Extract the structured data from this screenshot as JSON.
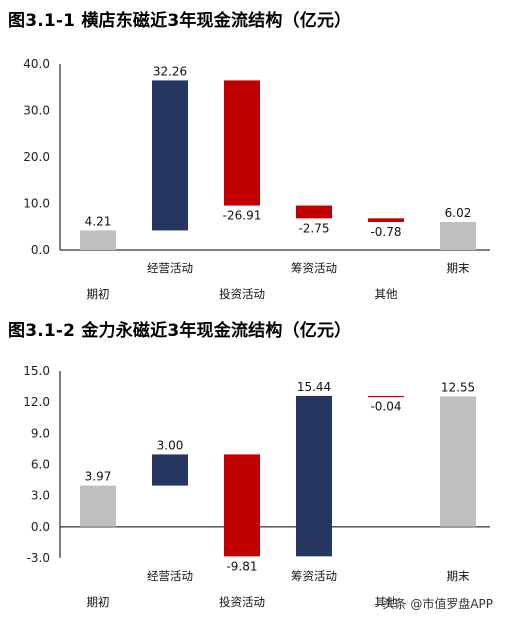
{
  "chart_data": [
    {
      "type": "bar",
      "title": "图3.1-1 横店东磁近3年现金流结构（亿元）",
      "categories": [
        "期初",
        "经营活动",
        "投资活动",
        "筹资活动",
        "其他",
        "期末"
      ],
      "values": [
        4.21,
        32.26,
        -26.91,
        -2.75,
        -0.78,
        6.02
      ],
      "value_labels": [
        "4.21",
        "32.26",
        "-26.91",
        "-2.75",
        "-0.78",
        "6.02"
      ],
      "bars": [
        {
          "category": "期初",
          "start": 0,
          "end": 4.21,
          "color": "#bfbfbf"
        },
        {
          "category": "经营活动",
          "start": 4.21,
          "end": 36.47,
          "color": "#253660"
        },
        {
          "category": "投资活动",
          "start": 36.47,
          "end": 9.56,
          "color": "#c00000"
        },
        {
          "category": "筹资活动",
          "start": 9.56,
          "end": 6.81,
          "color": "#c00000"
        },
        {
          "category": "其他",
          "start": 6.81,
          "end": 6.03,
          "color": "#c00000"
        },
        {
          "category": "期末",
          "start": 0,
          "end": 6.02,
          "color": "#bfbfbf"
        }
      ],
      "yticks": [
        "0.0",
        "10.0",
        "20.0",
        "30.0",
        "40.0"
      ],
      "ylim": [
        0,
        40
      ],
      "grid": false
    },
    {
      "type": "bar",
      "title": "图3.1-2 金力永磁近3年现金流结构（亿元）",
      "categories": [
        "期初",
        "经营活动",
        "投资活动",
        "筹资活动",
        "其他",
        "期末"
      ],
      "values": [
        3.97,
        3.0,
        -9.81,
        15.44,
        -0.04,
        12.55
      ],
      "value_labels": [
        "3.97",
        "3.00",
        "-9.81",
        "15.44",
        "-0.04",
        "12.55"
      ],
      "bars": [
        {
          "category": "期初",
          "start": 0,
          "end": 3.97,
          "color": "#bfbfbf"
        },
        {
          "category": "经营活动",
          "start": 3.97,
          "end": 6.97,
          "color": "#253660"
        },
        {
          "category": "投资活动",
          "start": 6.97,
          "end": -2.84,
          "color": "#c00000"
        },
        {
          "category": "筹资活动",
          "start": -2.84,
          "end": 12.6,
          "color": "#253660"
        },
        {
          "category": "其他",
          "start": 12.6,
          "end": 12.56,
          "color": "#c00000"
        },
        {
          "category": "期末",
          "start": 0,
          "end": 12.55,
          "color": "#bfbfbf"
        }
      ],
      "yticks": [
        "-3.0",
        "0.0",
        "3.0",
        "6.0",
        "9.0",
        "12.0",
        "15.0"
      ],
      "ylim": [
        -3,
        15
      ],
      "grid": false
    }
  ],
  "watermark": "头条 @市值罗盘APP"
}
